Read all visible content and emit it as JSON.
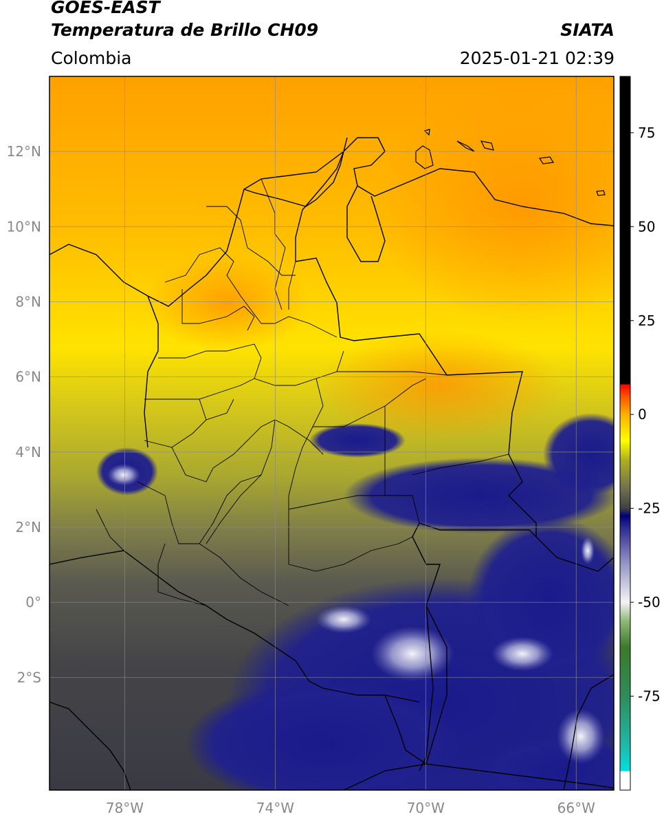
{
  "header": {
    "source": "GOES-EAST",
    "product": "Temperatura de Brillo CH09",
    "brand": "SIATA",
    "region": "Colombia",
    "datetime": "2025-01-21 02:39"
  },
  "map": {
    "lon_range": [
      -80,
      -65
    ],
    "lat_range": [
      -5,
      14
    ],
    "lat_ticks": [
      {
        "value": 12,
        "label": "12°N"
      },
      {
        "value": 10,
        "label": "10°N"
      },
      {
        "value": 8,
        "label": "8°N"
      },
      {
        "value": 6,
        "label": "6°N"
      },
      {
        "value": 4,
        "label": "4°N"
      },
      {
        "value": 2,
        "label": "2°N"
      },
      {
        "value": 0,
        "label": "0°"
      },
      {
        "value": -2,
        "label": "2°S"
      }
    ],
    "lon_ticks": [
      {
        "value": -78,
        "label": "78°W"
      },
      {
        "value": -74,
        "label": "74°W"
      },
      {
        "value": -70,
        "label": "70°W"
      },
      {
        "value": -66,
        "label": "66°W"
      }
    ],
    "grid": true
  },
  "colorbar": {
    "range": [
      -100,
      90
    ],
    "ticks": [
      {
        "value": 75,
        "label": "75"
      },
      {
        "value": 50,
        "label": "50"
      },
      {
        "value": 25,
        "label": "25"
      },
      {
        "value": 0,
        "label": "0"
      },
      {
        "value": -25,
        "label": "-25"
      },
      {
        "value": -50,
        "label": "-50"
      },
      {
        "value": -75,
        "label": "-75"
      }
    ],
    "stops": [
      {
        "value": -100,
        "color": "#ffffff"
      },
      {
        "value": -95,
        "color": "#ffffff"
      },
      {
        "value": -95,
        "color": "#00e0e0"
      },
      {
        "value": -88,
        "color": "#20b8a8"
      },
      {
        "value": -75,
        "color": "#2f8c5a"
      },
      {
        "value": -62,
        "color": "#3b7a2a"
      },
      {
        "value": -55,
        "color": "#8fb878"
      },
      {
        "value": -50,
        "color": "#f4f4f4"
      },
      {
        "value": -40,
        "color": "#9898c8"
      },
      {
        "value": -30,
        "color": "#2a2a90"
      },
      {
        "value": -27,
        "color": "#00007a"
      },
      {
        "value": -25,
        "color": "#404040"
      },
      {
        "value": -20,
        "color": "#6e6e50"
      },
      {
        "value": -12,
        "color": "#b0b020"
      },
      {
        "value": -7,
        "color": "#ffff00"
      },
      {
        "value": 0,
        "color": "#ffb000"
      },
      {
        "value": 5,
        "color": "#ff5000"
      },
      {
        "value": 8,
        "color": "#ff0000"
      },
      {
        "value": 8,
        "color": "#000000"
      },
      {
        "value": 90,
        "color": "#000000"
      }
    ]
  }
}
